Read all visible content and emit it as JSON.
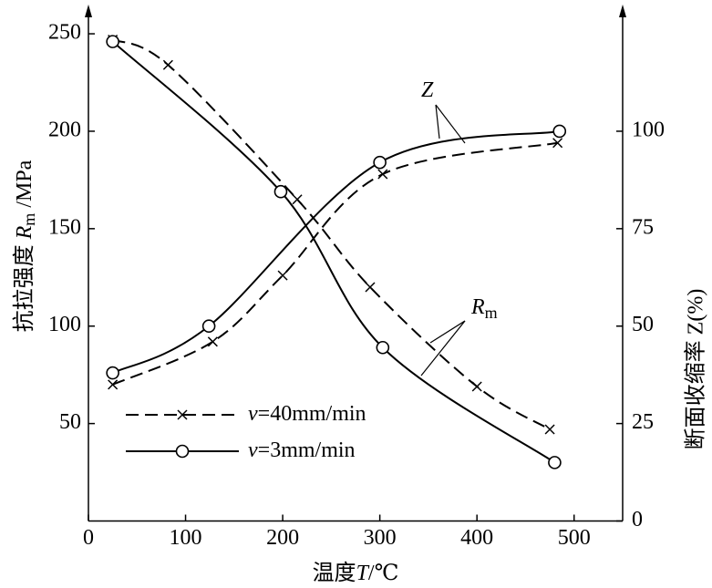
{
  "chart_data": {
    "type": "line",
    "xlabel": [
      "温度",
      "T",
      "/℃"
    ],
    "ylabel": [
      "抗拉强度",
      "R",
      "m",
      "/MPa"
    ],
    "y2label": "断面收缩率 Z(%)",
    "xlim": [
      0,
      550
    ],
    "xticks": [
      0,
      100,
      200,
      300,
      400,
      500
    ],
    "ylim": [
      0,
      265
    ],
    "yticks": [
      50,
      100,
      150,
      200,
      250
    ],
    "y2lim": [
      0,
      132.5
    ],
    "y2ticks": [
      0,
      25,
      50,
      75,
      100
    ],
    "legend": [
      {
        "label": [
          "v",
          "=40mm/min"
        ],
        "dash": "dashed",
        "marker": "x"
      },
      {
        "label": [
          "v",
          "=3mm/min"
        ],
        "dash": "solid",
        "marker": "o"
      }
    ],
    "annotations": [
      {
        "text": "Z",
        "curve": "y2"
      },
      {
        "text": "R",
        "subscript": "m",
        "curve": "y"
      }
    ],
    "color": "#000000",
    "series": [
      {
        "legend": 0,
        "axis": "y",
        "x": [
          25,
          82,
          215,
          290,
          400,
          475
        ],
        "values": [
          247,
          234,
          165,
          120,
          69,
          47
        ]
      },
      {
        "legend": 1,
        "axis": "y",
        "x": [
          25,
          198,
          303,
          480
        ],
        "values": [
          246,
          169,
          89,
          30
        ]
      },
      {
        "legend": 0,
        "axis": "y2",
        "x": [
          25,
          128,
          200,
          303,
          483
        ],
        "values": [
          35,
          46,
          63,
          89,
          97
        ]
      },
      {
        "legend": 1,
        "axis": "y2",
        "x": [
          25,
          124,
          300,
          485
        ],
        "values": [
          38,
          50,
          92,
          100
        ]
      }
    ]
  }
}
